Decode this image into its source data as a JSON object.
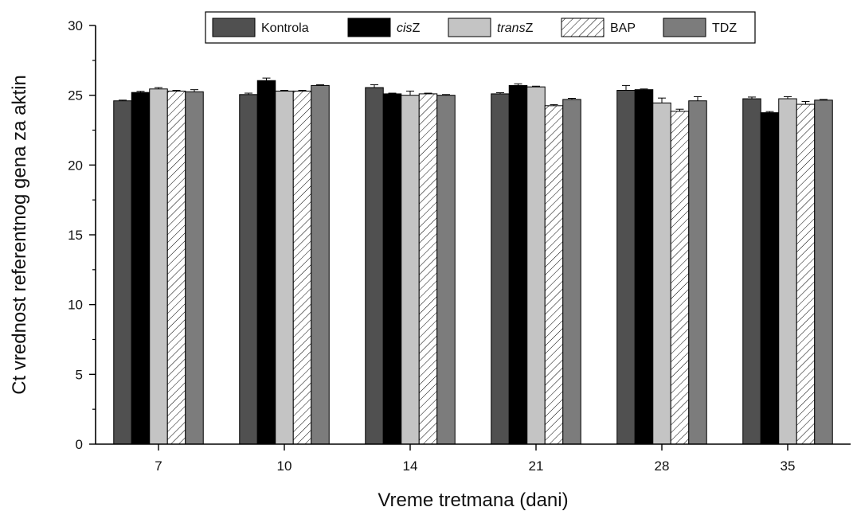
{
  "chart_data": {
    "type": "bar",
    "title": "",
    "xlabel": "Vreme tretmana (dani)",
    "ylabel": "Ct vrednost referentnog gena za aktin",
    "ylim": [
      0,
      30
    ],
    "yticks": [
      0,
      5,
      10,
      15,
      20,
      25,
      30
    ],
    "categories": [
      "7",
      "10",
      "14",
      "21",
      "28",
      "35"
    ],
    "legend_position": "top",
    "series": [
      {
        "name": "Kontrola",
        "legend_prefix": "Kontrola",
        "legend_suffix": "",
        "color": "#505050",
        "hatch": false,
        "values": [
          24.6,
          25.05,
          25.55,
          25.1,
          25.35,
          24.75
        ],
        "errors": [
          0.05,
          0.1,
          0.2,
          0.08,
          0.35,
          0.12
        ]
      },
      {
        "name": "cisZ",
        "legend_prefix": "cis",
        "legend_suffix": "Z",
        "color": "#000000",
        "hatch": false,
        "values": [
          25.2,
          26.05,
          25.1,
          25.7,
          25.4,
          23.75
        ],
        "errors": [
          0.08,
          0.18,
          0.05,
          0.12,
          0.05,
          0.08
        ]
      },
      {
        "name": "transZ",
        "legend_prefix": "trans",
        "legend_suffix": "Z",
        "color": "#c4c4c4",
        "hatch": false,
        "values": [
          25.45,
          25.3,
          25.0,
          25.6,
          24.45,
          24.75
        ],
        "errors": [
          0.1,
          0.05,
          0.3,
          0.05,
          0.35,
          0.15
        ]
      },
      {
        "name": "BAP",
        "legend_prefix": "BAP",
        "legend_suffix": "",
        "color": "#ffffff",
        "hatch": true,
        "values": [
          25.3,
          25.3,
          25.1,
          24.25,
          23.85,
          24.35
        ],
        "errors": [
          0.05,
          0.05,
          0.05,
          0.08,
          0.15,
          0.2
        ]
      },
      {
        "name": "TDZ",
        "legend_prefix": "TDZ",
        "legend_suffix": "",
        "color": "#7c7c7c",
        "hatch": false,
        "values": [
          25.25,
          25.7,
          25.0,
          24.7,
          24.6,
          24.65
        ],
        "errors": [
          0.15,
          0.05,
          0.05,
          0.08,
          0.3,
          0.05
        ]
      }
    ]
  }
}
